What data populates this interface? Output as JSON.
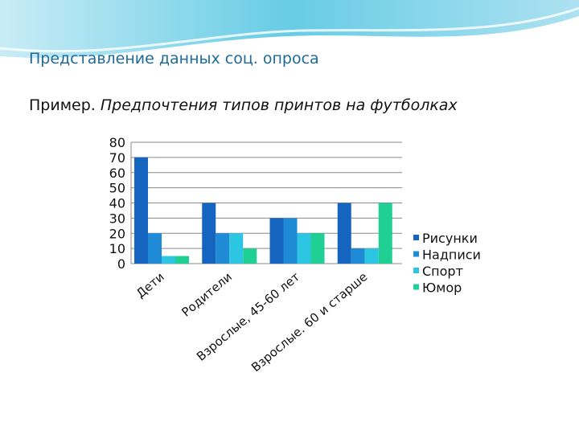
{
  "slide_title": "Представление данных соц. опроса",
  "subtitle_prefix": "Пример. ",
  "subtitle_italic": "Предпочтения типов принтов на футболках",
  "chart_data": {
    "type": "bar",
    "categories": [
      "Дети",
      "Родители",
      "Взрослые, 45-60 лет",
      "Взрослые. 60 и старше"
    ],
    "series": [
      {
        "name": "Рисунки",
        "color": "#1565c0",
        "values": [
          70,
          40,
          30,
          40
        ]
      },
      {
        "name": "Надписи",
        "color": "#1f8ad6",
        "values": [
          20,
          20,
          30,
          10
        ]
      },
      {
        "name": "Спорт",
        "color": "#2cc6e2",
        "values": [
          5,
          20,
          20,
          10
        ]
      },
      {
        "name": "Юмор",
        "color": "#1fcf93",
        "values": [
          5,
          10,
          20,
          40
        ]
      }
    ],
    "ylim": [
      0,
      80
    ],
    "yticks": [
      0,
      10,
      20,
      30,
      40,
      50,
      60,
      70,
      80
    ],
    "grid": true,
    "legend": "right"
  }
}
